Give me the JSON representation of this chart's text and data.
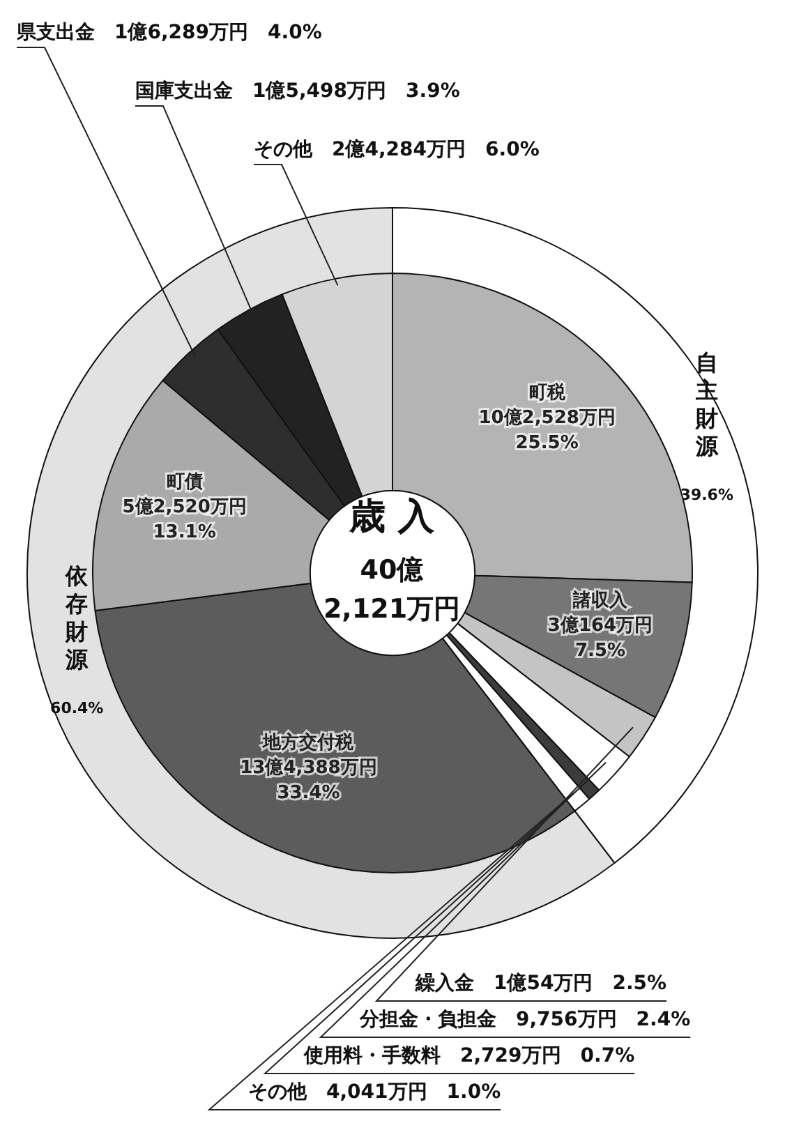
{
  "chart_data": [
    {
      "type": "donut",
      "title": "歳 入",
      "subtitle": "40億\n2,121万円",
      "categories": [
        "町税\n10億2,528万円",
        "諸収入\n3億164万円",
        "繰入金\n1億54万円",
        "分担金・負担金\n9,756万円",
        "使用料・手数料\n2,729万円",
        "その他\n4,041万円",
        "地方交付税\n13億4,388万円",
        "町債\n5億2,520万円",
        "県支出金\n1億6,289万円",
        "国庫支出金\n1億5,498万円",
        "その他\n2億4,284万円"
      ],
      "values": [
        25.5,
        7.5,
        2.5,
        2.4,
        0.7,
        1.0,
        33.4,
        13.1,
        4.0,
        3.9,
        6.0
      ],
      "value_labels": [
        "25.5%",
        "7.5%",
        "2.5%",
        "2.4%",
        "0.7%",
        "1.0%",
        "33.4%",
        "13.1%",
        "4.0%",
        "3.9%",
        "6.0%"
      ],
      "colors": [
        "#b4b4b4",
        "#767676",
        "#c4c4c4",
        "#ffffff",
        "#3c3c3c",
        "#ffffff",
        "#5c5c5c",
        "#aaaaaa",
        "#2e2e2e",
        "#222222",
        "#d4d4d4"
      ],
      "legend": false
    },
    {
      "type": "donut",
      "categories": [
        "自主財源",
        "依存財源"
      ],
      "values": [
        39.6,
        60.4
      ],
      "value_labels": [
        "39.6%",
        "60.4%"
      ],
      "colors": [
        "#ffffff",
        "#e2e2e2"
      ],
      "legend": false
    }
  ]
}
